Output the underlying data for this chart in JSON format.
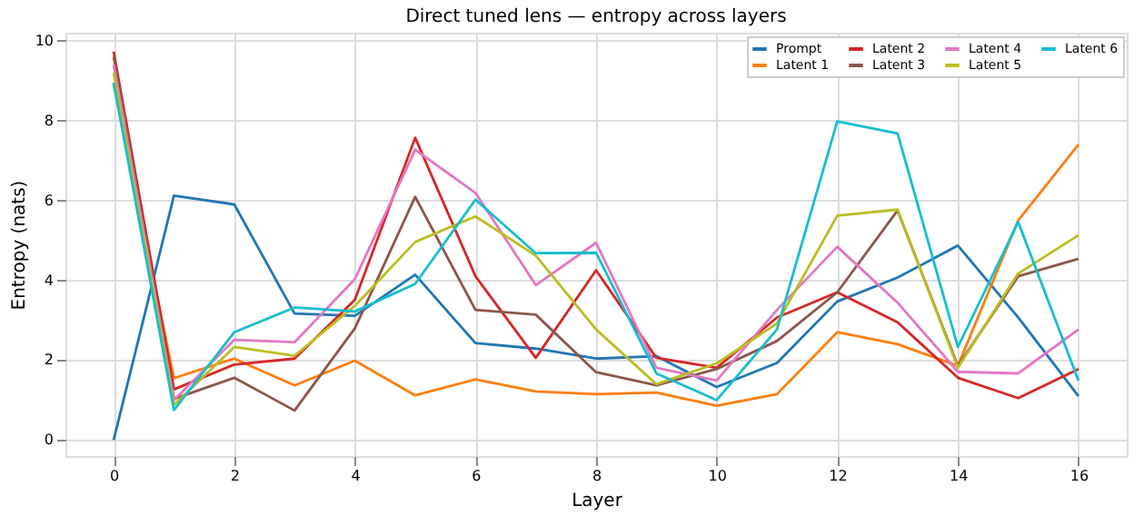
{
  "chart_data": {
    "type": "line",
    "title": "Direct tuned lens — entropy across layers",
    "xlabel": "Layer",
    "ylabel": "Entropy (nats)",
    "x": [
      0,
      1,
      2,
      3,
      4,
      5,
      6,
      7,
      8,
      9,
      10,
      11,
      12,
      13,
      14,
      15,
      16
    ],
    "xlim": [
      -0.8,
      16.8
    ],
    "xticks": [
      0,
      2,
      4,
      6,
      8,
      10,
      12,
      14,
      16
    ],
    "ylim": [
      -0.4,
      10.2
    ],
    "yticks": [
      0,
      2,
      4,
      6,
      8,
      10
    ],
    "grid": true,
    "legend": "top right",
    "line_style": "solid",
    "marker": "none",
    "series": [
      {
        "name": "Prompt",
        "color": "#1f77b4",
        "values": [
          0,
          6.12,
          5.9,
          3.17,
          3.11,
          4.14,
          2.43,
          2.29,
          2.04,
          2.1,
          1.33,
          1.93,
          3.47,
          4.07,
          4.87,
          3.07,
          1.1
        ]
      },
      {
        "name": "Latent 1",
        "color": "#ff7f0e",
        "values": [
          8.9,
          1.55,
          2.04,
          1.37,
          1.99,
          1.12,
          1.52,
          1.22,
          1.15,
          1.19,
          0.86,
          1.15,
          2.7,
          2.4,
          1.86,
          5.5,
          7.4
        ]
      },
      {
        "name": "Latent 2",
        "color": "#d62728",
        "values": [
          9.73,
          1.27,
          1.89,
          2.04,
          3.51,
          7.57,
          4.1,
          2.06,
          4.25,
          2.06,
          1.81,
          3.07,
          3.7,
          2.95,
          1.56,
          1.05,
          1.78
        ]
      },
      {
        "name": "Latent 3",
        "color": "#8c564b",
        "values": [
          9.6,
          1.03,
          1.56,
          0.74,
          2.8,
          6.09,
          3.26,
          3.14,
          1.7,
          1.37,
          1.78,
          2.48,
          3.7,
          5.75,
          1.86,
          4.1,
          4.54
        ]
      },
      {
        "name": "Latent 4",
        "color": "#e377c2",
        "values": [
          9.4,
          1.0,
          2.51,
          2.45,
          4.03,
          7.27,
          6.19,
          3.88,
          4.94,
          1.81,
          1.49,
          3.26,
          4.84,
          3.44,
          1.71,
          1.67,
          2.77
        ]
      },
      {
        "name": "Latent 5",
        "color": "#bcbd22",
        "values": [
          9.2,
          0.88,
          2.33,
          2.11,
          3.36,
          4.96,
          5.6,
          4.62,
          2.77,
          1.4,
          1.92,
          2.92,
          5.62,
          5.77,
          1.81,
          4.17,
          5.13
        ]
      },
      {
        "name": "Latent 6",
        "color": "#17becf",
        "values": [
          8.95,
          0.75,
          2.7,
          3.32,
          3.22,
          3.91,
          6.02,
          4.68,
          4.69,
          1.67,
          1.0,
          2.77,
          7.98,
          7.68,
          2.33,
          5.46,
          1.49
        ]
      }
    ]
  }
}
